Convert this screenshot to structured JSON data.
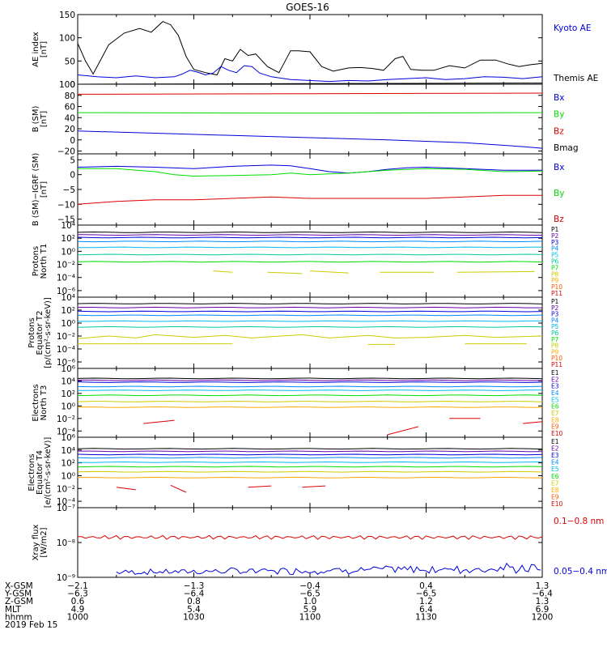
{
  "title": "GOES-16",
  "date_label": "2019 Feb 15",
  "colors": {
    "black": "#000000",
    "blue": "#0000dd",
    "green": "#00dd00",
    "red": "#dd0000",
    "P1": "#000000",
    "P2": "#6a00a8",
    "P3": "#0000dd",
    "P4": "#0088ff",
    "P5": "#00bbee",
    "P6": "#00cc99",
    "P7": "#00dd00",
    "P8": "#cccc00",
    "P9": "#ffaa00",
    "P10": "#ff5500",
    "P11": "#dd0000",
    "E1": "#000000",
    "E2": "#6a00a8",
    "E3": "#0000dd",
    "E4": "#0088ff",
    "E5": "#00bbee",
    "E6": "#00dd00",
    "E7": "#cccc00",
    "E8": "#ffaa00",
    "E9": "#ff5500",
    "E10": "#dd0000"
  },
  "chart_data": [
    {
      "id": "ae",
      "type": "line",
      "ylabel": [
        "AE index",
        "[nT]"
      ],
      "ylim": [
        0,
        150
      ],
      "yticks": [
        {
          "v": 0,
          "t": "0"
        },
        {
          "v": 50,
          "t": "50"
        },
        {
          "v": 100,
          "t": "100"
        },
        {
          "v": 150,
          "t": "150"
        }
      ],
      "legend": [
        {
          "name": "Kyoto AE",
          "color": "blue"
        },
        {
          "name": "Themis AE",
          "color": "black"
        }
      ],
      "series": [
        {
          "name": "Themis AE",
          "color": "black",
          "t": [
            0,
            2,
            4,
            8,
            12,
            16,
            19,
            22,
            24,
            26,
            28,
            30,
            33,
            36,
            38,
            40,
            42,
            44,
            46,
            49,
            52,
            55,
            57,
            60,
            63,
            66,
            70,
            73,
            76,
            79,
            82,
            84,
            86,
            89,
            92,
            96,
            100,
            104,
            108,
            111,
            114,
            117,
            120
          ],
          "y": [
            88,
            50,
            22,
            85,
            110,
            120,
            112,
            135,
            128,
            105,
            60,
            32,
            25,
            20,
            55,
            50,
            75,
            62,
            65,
            38,
            25,
            72,
            72,
            70,
            38,
            28,
            35,
            36,
            34,
            30,
            55,
            60,
            32,
            30,
            30,
            40,
            35,
            52,
            52,
            44,
            38,
            42,
            45
          ]
        },
        {
          "name": "Kyoto AE",
          "color": "blue",
          "t": [
            0,
            5,
            10,
            15,
            20,
            25,
            27,
            29,
            31,
            33,
            35,
            37,
            39,
            41,
            43,
            45,
            47,
            50,
            55,
            60,
            65,
            70,
            75,
            80,
            85,
            90,
            95,
            100,
            105,
            110,
            115,
            120
          ],
          "y": [
            20,
            16,
            14,
            18,
            14,
            16,
            22,
            30,
            26,
            20,
            24,
            38,
            30,
            25,
            40,
            38,
            24,
            16,
            10,
            8,
            6,
            8,
            7,
            10,
            12,
            14,
            10,
            12,
            16,
            15,
            12,
            16
          ]
        }
      ]
    },
    {
      "id": "bsm",
      "type": "line",
      "ylabel": [
        "B (SM)",
        "[nT]"
      ],
      "ylim": [
        -25,
        100
      ],
      "yticks": [
        {
          "v": 100,
          "t": "100"
        },
        {
          "v": 80,
          "t": "80"
        },
        {
          "v": 60,
          "t": "60"
        },
        {
          "v": 40,
          "t": "40"
        },
        {
          "v": 20,
          "t": "20"
        },
        {
          "v": 0,
          "t": "0"
        },
        {
          "v": -20,
          "t": "−20"
        }
      ],
      "legend": [
        {
          "name": "Bx",
          "color": "blue"
        },
        {
          "name": "By",
          "color": "green"
        },
        {
          "name": "Bz",
          "color": "red"
        },
        {
          "name": "Bmag",
          "color": "black"
        }
      ],
      "series": [
        {
          "name": "Bmag",
          "color": "black",
          "t": [
            0,
            60,
            120
          ],
          "y": [
            100,
            101,
            102
          ]
        },
        {
          "name": "Bz",
          "color": "red",
          "t": [
            0,
            60,
            120
          ],
          "y": [
            82,
            83,
            84
          ]
        },
        {
          "name": "By",
          "color": "green",
          "t": [
            0,
            60,
            120
          ],
          "y": [
            49,
            48,
            49
          ]
        },
        {
          "name": "Bx",
          "color": "blue",
          "t": [
            0,
            20,
            40,
            60,
            80,
            100,
            115,
            120
          ],
          "y": [
            16,
            12,
            8,
            4,
            0,
            -5,
            -12,
            -15
          ]
        }
      ]
    },
    {
      "id": "bres",
      "type": "line",
      "ylabel": [
        "B (SM)−IGRF (SM)",
        "[nT]"
      ],
      "ylim": [
        -17,
        7
      ],
      "yticks": [
        {
          "v": 5,
          "t": "5"
        },
        {
          "v": 0,
          "t": "0"
        },
        {
          "v": -5,
          "t": "−5"
        },
        {
          "v": -10,
          "t": "−10"
        },
        {
          "v": -15,
          "t": "−15"
        }
      ],
      "legend": [
        {
          "name": "Bx",
          "color": "blue"
        },
        {
          "name": "By",
          "color": "green"
        },
        {
          "name": "Bz",
          "color": "red"
        }
      ],
      "series": [
        {
          "name": "Bx",
          "color": "blue",
          "t": [
            0,
            10,
            20,
            30,
            40,
            50,
            55,
            60,
            65,
            70,
            75,
            80,
            85,
            90,
            100,
            110,
            120
          ],
          "y": [
            2.5,
            2.8,
            2.5,
            2,
            2.8,
            3.2,
            3,
            2,
            1,
            0.5,
            1,
            1.8,
            2.3,
            2.5,
            2,
            1.5,
            1.5
          ]
        },
        {
          "name": "By",
          "color": "green",
          "t": [
            0,
            10,
            20,
            25,
            30,
            40,
            50,
            55,
            60,
            70,
            80,
            90,
            100,
            110,
            120
          ],
          "y": [
            2,
            2,
            1,
            0,
            -0.5,
            -0.3,
            0,
            0.5,
            0,
            0.5,
            1.5,
            2,
            1.8,
            1,
            1.2
          ]
        },
        {
          "name": "Bz",
          "color": "red",
          "t": [
            0,
            10,
            20,
            30,
            40,
            50,
            60,
            70,
            80,
            90,
            100,
            110,
            120
          ],
          "y": [
            -10,
            -9,
            -8.5,
            -8.5,
            -8,
            -7.5,
            -8,
            -8,
            -8,
            -8,
            -7.5,
            -7,
            -7
          ]
        }
      ]
    },
    {
      "id": "pn",
      "type": "line",
      "log": true,
      "ylabel": [
        "Protons",
        "North T1"
      ],
      "ylim": [
        -7,
        4
      ],
      "yticks": [
        {
          "v": 4,
          "t": "10⁴"
        },
        {
          "v": 2,
          "t": "10²"
        },
        {
          "v": 0,
          "t": "10⁰"
        },
        {
          "v": -2,
          "t": "10⁻²"
        },
        {
          "v": -4,
          "t": "10⁻⁴"
        },
        {
          "v": -6,
          "t": "10⁻⁶"
        }
      ],
      "legend_small": [
        "P1",
        "P2",
        "P3",
        "P4",
        "P5",
        "P6",
        "P7",
        "P8",
        "P9",
        "P10",
        "P11"
      ],
      "levels": [
        2.9,
        2.5,
        2.1,
        1.5,
        0.6,
        -0.5,
        -1.6
      ],
      "segments": [
        {
          "c": "P8",
          "t": [
            35,
            40
          ],
          "y": [
            -3.0,
            -3.2
          ]
        },
        {
          "c": "P8",
          "t": [
            49,
            58
          ],
          "y": [
            -3.2,
            -3.4
          ]
        },
        {
          "c": "P8",
          "t": [
            60,
            70
          ],
          "y": [
            -3.0,
            -3.3
          ]
        },
        {
          "c": "P8",
          "t": [
            78,
            92
          ],
          "y": [
            -3.2,
            -3.2
          ]
        },
        {
          "c": "P8",
          "t": [
            98,
            118
          ],
          "y": [
            -3.2,
            -3.1
          ]
        }
      ]
    },
    {
      "id": "pe",
      "type": "line",
      "log": true,
      "ylabel": [
        "Protons",
        "Equator T2",
        "[p/(cm²-s-sr-keV)]"
      ],
      "ylim": [
        -7,
        4
      ],
      "yticks": [
        {
          "v": 4,
          "t": "10⁴"
        },
        {
          "v": 2,
          "t": "10²"
        },
        {
          "v": 0,
          "t": "10⁰"
        },
        {
          "v": -2,
          "t": "10⁻²"
        },
        {
          "v": -4,
          "t": "10⁻⁴"
        },
        {
          "v": -6,
          "t": "10⁻⁶"
        }
      ],
      "legend_small": [
        "P1",
        "P2",
        "P3",
        "P4",
        "P5",
        "P6",
        "P7",
        "P8",
        "P9",
        "P10",
        "P11"
      ],
      "levels": [
        3.0,
        2.4,
        1.8,
        1.2,
        0.3,
        -0.6
      ],
      "wiggle": {
        "c": "P8",
        "t": [
          0,
          8,
          15,
          20,
          30,
          38,
          45,
          50,
          58,
          65,
          75,
          82,
          90,
          100,
          108,
          120
        ],
        "y": [
          -2.4,
          -2.0,
          -2.3,
          -1.8,
          -2.2,
          -1.9,
          -2.3,
          -2.1,
          -1.8,
          -2.3,
          -1.9,
          -2.3,
          -2.2,
          -1.9,
          -2.2,
          -2.0
        ]
      },
      "segments": [
        {
          "c": "P8",
          "t": [
            0,
            40
          ],
          "y": [
            -3.2,
            -3.2
          ]
        },
        {
          "c": "P8",
          "t": [
            75,
            82
          ],
          "y": [
            -3.3,
            -3.3
          ]
        },
        {
          "c": "P8",
          "t": [
            100,
            116
          ],
          "y": [
            -3.2,
            -3.2
          ]
        }
      ]
    },
    {
      "id": "en",
      "type": "line",
      "log": true,
      "ylabel": [
        "Electrons",
        "North T3"
      ],
      "ylim": [
        -5,
        6
      ],
      "yticks": [
        {
          "v": 6,
          "t": "10⁶"
        },
        {
          "v": 4,
          "t": "10⁴"
        },
        {
          "v": 2,
          "t": "10²"
        },
        {
          "v": 0,
          "t": "10⁰"
        },
        {
          "v": -2,
          "t": "10⁻²"
        },
        {
          "v": -4,
          "t": "10⁻⁴"
        }
      ],
      "legend_small": [
        "E1",
        "E2",
        "E3",
        "E4",
        "E5",
        "E6",
        "E7",
        "E8",
        "E9",
        "E10"
      ],
      "levels": [
        4.4,
        4.1,
        3.8,
        3.1,
        2.5,
        1.7,
        0.7,
        -0.2
      ],
      "segments": [
        {
          "c": "E10",
          "t": [
            17,
            25
          ],
          "y": [
            -2.8,
            -2.3
          ]
        },
        {
          "c": "E10",
          "t": [
            80,
            88
          ],
          "y": [
            -4.6,
            -3.3
          ]
        },
        {
          "c": "E10",
          "t": [
            96,
            104
          ],
          "y": [
            -2.0,
            -2.0
          ]
        },
        {
          "c": "E10",
          "t": [
            115,
            120
          ],
          "y": [
            -2.8,
            -2.5
          ]
        }
      ]
    },
    {
      "id": "ee",
      "type": "line",
      "log": true,
      "ylabel": [
        "Electrons",
        "Equator T4",
        "[e/(cm²-s-sr-keV)]"
      ],
      "ylim": [
        -5,
        6
      ],
      "yticks": [
        {
          "v": 6,
          "t": "10⁶"
        },
        {
          "v": 4,
          "t": "10⁴"
        },
        {
          "v": 2,
          "t": "10²"
        },
        {
          "v": 0,
          "t": "10⁰"
        },
        {
          "v": -2,
          "t": "10⁻²"
        },
        {
          "v": -4,
          "t": "10⁻⁴"
        }
      ],
      "legend_small": [
        "E1",
        "E2",
        "E3",
        "E4",
        "E5",
        "E6",
        "E7",
        "E8",
        "E9",
        "E10"
      ],
      "levels": [
        4.2,
        3.8,
        3.3,
        2.8,
        2.1,
        1.4,
        0.6,
        -0.3
      ],
      "segments": [
        {
          "c": "E10",
          "t": [
            10,
            15
          ],
          "y": [
            -1.8,
            -2.2
          ]
        },
        {
          "c": "E10",
          "t": [
            24,
            28
          ],
          "y": [
            -1.5,
            -2.6
          ]
        },
        {
          "c": "E10",
          "t": [
            44,
            50
          ],
          "y": [
            -1.8,
            -1.6
          ]
        },
        {
          "c": "E10",
          "t": [
            58,
            64
          ],
          "y": [
            -1.8,
            -1.6
          ]
        }
      ]
    },
    {
      "id": "xray",
      "type": "line",
      "log": true,
      "ylabel": [
        "Xray flux",
        "[W/m2]"
      ],
      "ylim": [
        -9,
        -7
      ],
      "yticks": [
        {
          "v": -7,
          "t": "10⁻⁷"
        },
        {
          "v": -8,
          "t": "10⁻⁸"
        },
        {
          "v": -9,
          "t": "10⁻⁹"
        }
      ],
      "legend": [
        {
          "name": "0.1−0.8 nm",
          "color": "red"
        },
        {
          "name": "0.05−0.4 nm",
          "color": "blue"
        }
      ],
      "red_level": -7.85,
      "blue_noise": {
        "t": [
          10,
          120
        ],
        "ylo": -9.0,
        "yhi": -8.55
      }
    }
  ],
  "xaxis": {
    "xlim": [
      0,
      120
    ],
    "ticks": [
      {
        "t": 0,
        "cols": [
          "−2.1",
          "−6.3",
          "0.6",
          "4.9",
          "1000"
        ]
      },
      {
        "t": 30,
        "cols": [
          "−1.3",
          "−6.4",
          "0.8",
          "5.4",
          "1030"
        ]
      },
      {
        "t": 60,
        "cols": [
          "−0.4",
          "−6.5",
          "1.0",
          "5.9",
          "1100"
        ]
      },
      {
        "t": 90,
        "cols": [
          "0.4",
          "−6.5",
          "1.2",
          "6.4",
          "1130"
        ]
      },
      {
        "t": 120,
        "cols": [
          "1.3",
          "−6.4",
          "1.3",
          "6.9",
          "1200"
        ]
      }
    ],
    "row_labels": [
      "X-GSM",
      "Y-GSM",
      "Z-GSM",
      "MLT",
      "hhmm"
    ]
  }
}
